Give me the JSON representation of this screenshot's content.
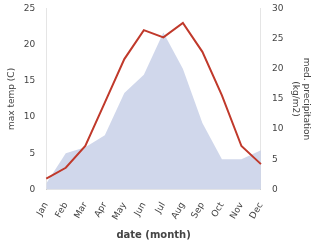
{
  "chart_data": {
    "type": "line",
    "categories": [
      "Jan",
      "Feb",
      "Mar",
      "Apr",
      "May",
      "Jun",
      "Jul",
      "Aug",
      "Sep",
      "Oct",
      "Nov",
      "Dec"
    ],
    "series": [
      {
        "type": "area",
        "color": "#c8d0e8",
        "axis": "y2",
        "values": [
          1.0,
          6.0,
          7.0,
          9.0,
          16.0,
          19.0,
          26.0,
          20.0,
          11.0,
          5.0,
          5.0,
          6.5
        ]
      },
      {
        "type": "line",
        "color": "#c0392b",
        "values": [
          1.5,
          3.0,
          6.0,
          12.0,
          18.0,
          22.0,
          21.0,
          23.0,
          19.0,
          13.0,
          6.0,
          3.5
        ]
      }
    ],
    "xlabel": "date (month)",
    "ylabel": "max temp (C)",
    "y2label": "med. precipitation\n(kg/m2)",
    "ylim": [
      0,
      25
    ],
    "yticks": [
      0,
      5,
      10,
      15,
      20,
      25
    ],
    "y2lim": [
      0,
      30
    ],
    "y2ticks": [
      0,
      5,
      10,
      15,
      20,
      25,
      30
    ],
    "grid": false
  }
}
